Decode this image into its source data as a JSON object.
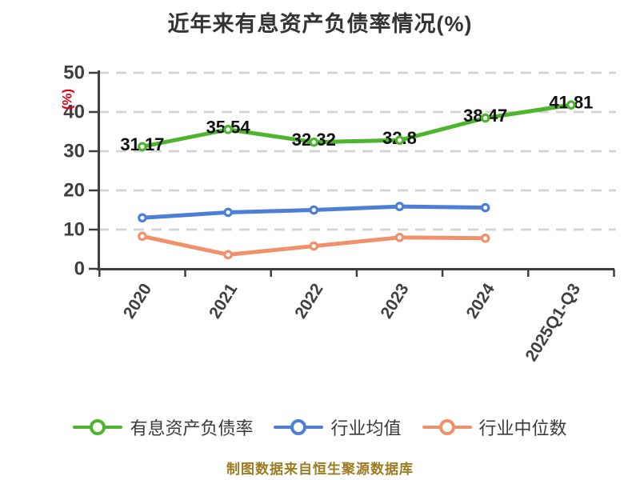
{
  "title": "近年来有息资产负债率情况(%)",
  "footer_note": "制图数据来自恒生聚源数据库",
  "y_axis_unit_label": "(%)",
  "colors": {
    "title_text": "#333333",
    "axis": "#3e3e3e",
    "tick_text": "#3f3f3f",
    "grid": "#d4d4d4",
    "data_label": "#111111",
    "unit_label_red": "#e60012",
    "footer_gold": "#9d7b1e",
    "series_green": "#4cb42d",
    "series_blue": "#4d7fd6",
    "series_orange": "#f0916b"
  },
  "chart_data": {
    "type": "line",
    "title": "近年来有息资产负债率情况(%)",
    "xlabel": "",
    "ylabel": "(%)",
    "categories": [
      "2020",
      "2021",
      "2022",
      "2023",
      "2024",
      "2025Q1-Q3"
    ],
    "series": [
      {
        "name": "有息资产负债率",
        "color": "#4cb42d",
        "values": [
          31.17,
          35.54,
          32.32,
          32.8,
          38.47,
          41.81
        ],
        "labels": [
          "31.17",
          "35.54",
          "32.32",
          "32.8",
          "38.47",
          "41.81"
        ],
        "show_labels": true
      },
      {
        "name": "行业均值",
        "color": "#4d7fd6",
        "values": [
          13.0,
          14.4,
          15.0,
          15.9,
          15.6
        ],
        "labels": [],
        "show_labels": false
      },
      {
        "name": "行业中位数",
        "color": "#f0916b",
        "values": [
          8.3,
          3.6,
          5.8,
          8.0,
          7.8
        ],
        "labels": [],
        "show_labels": false
      }
    ],
    "ylim": [
      0,
      50
    ],
    "yticks": [
      0,
      10,
      20,
      30,
      40,
      50
    ],
    "grid": "horizontal-dashed",
    "legend_position": "bottom",
    "marker_style": "white-filled-circle"
  }
}
